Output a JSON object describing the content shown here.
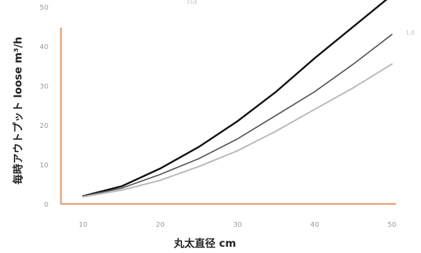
{
  "chart_data": {
    "type": "line",
    "xlabel": "丸太直径 cm",
    "ylabel": "毎時アウトプット loose m³/h",
    "xlim": [
      10,
      50
    ],
    "ylim": [
      0,
      50
    ],
    "x_ticks": [
      "10",
      "20",
      "30",
      "40",
      "50"
    ],
    "y_ticks": [
      "0",
      "10",
      "20",
      "30",
      "40",
      "50"
    ],
    "grid": false,
    "series": [
      {
        "name": "",
        "color": "#111111",
        "x": [
          10,
          15,
          20,
          25,
          30,
          35,
          40,
          45,
          50
        ],
        "y": [
          2.0,
          4.5,
          9.0,
          14.5,
          21.0,
          28.5,
          37.0,
          45.0,
          53.0
        ]
      },
      {
        "name": "",
        "color": "#555555",
        "x": [
          10,
          15,
          20,
          25,
          30,
          35,
          40,
          45,
          50
        ],
        "y": [
          2.0,
          4.0,
          7.5,
          11.5,
          16.5,
          22.5,
          28.5,
          35.5,
          43.0
        ]
      },
      {
        "name": "",
        "color": "#bbbbbb",
        "x": [
          10,
          15,
          20,
          25,
          30,
          35,
          40,
          45,
          50
        ],
        "y": [
          1.8,
          3.5,
          6.0,
          9.5,
          13.5,
          18.5,
          24.0,
          29.5,
          35.5
        ]
      }
    ],
    "series_end_label": "1.0",
    "top_fragment": "ha"
  }
}
